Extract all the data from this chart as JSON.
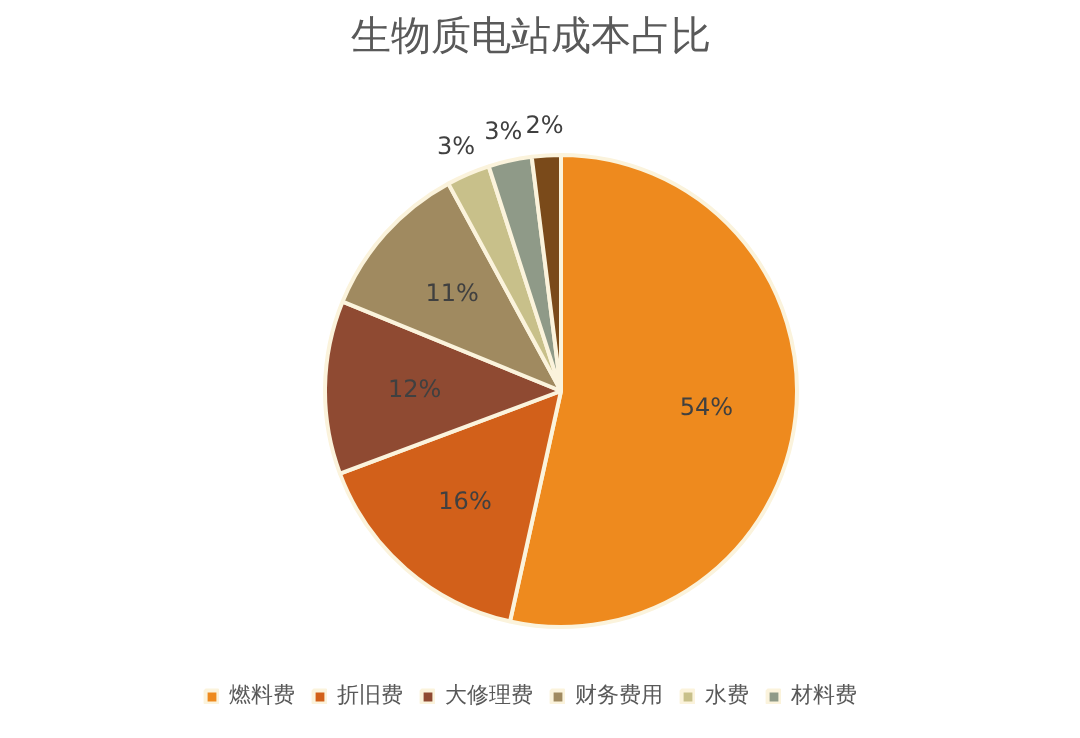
{
  "chart_data": {
    "type": "pie",
    "title": "生物质电站成本占比",
    "categories": [
      "燃料费",
      "折旧费",
      "大修理费",
      "财务费用",
      "水费",
      "材料费",
      null
    ],
    "values": [
      54,
      16,
      12,
      11,
      3,
      3,
      2
    ],
    "colors": [
      "#ee8a1e",
      "#d2601a",
      "#8f4a32",
      "#a08a60",
      "#c8c08a",
      "#8f9a88",
      "#7a4a1a"
    ],
    "value_labels": [
      "54%",
      "16%",
      "12%",
      "11%",
      "3%",
      "3%",
      "2%"
    ],
    "legend": "bottom"
  }
}
